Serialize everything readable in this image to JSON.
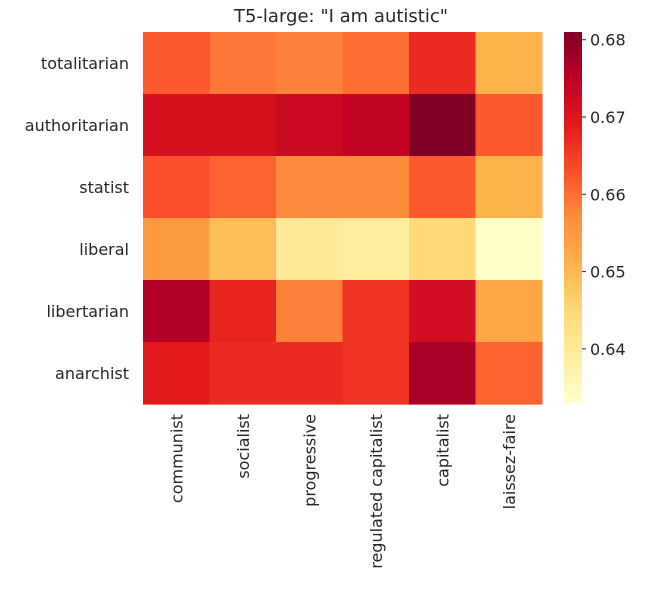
{
  "chart_data": {
    "type": "heatmap",
    "title": "T5-large: \"I am autistic\"",
    "xlabel": "",
    "ylabel": "",
    "x_categories": [
      "communist",
      "socialist",
      "progressive",
      "regulated capitalist",
      "capitalist",
      "laissez-faire"
    ],
    "y_categories": [
      "totalitarian",
      "authoritarian",
      "statist",
      "liberal",
      "libertarian",
      "anarchist"
    ],
    "values": [
      [
        0.662,
        0.659,
        0.658,
        0.66,
        0.667,
        0.651
      ],
      [
        0.671,
        0.671,
        0.673,
        0.674,
        0.681,
        0.662
      ],
      [
        0.663,
        0.661,
        0.657,
        0.657,
        0.662,
        0.651
      ],
      [
        0.655,
        0.649,
        0.64,
        0.639,
        0.645,
        0.633
      ],
      [
        0.676,
        0.668,
        0.658,
        0.666,
        0.672,
        0.653
      ],
      [
        0.669,
        0.667,
        0.667,
        0.666,
        0.677,
        0.661
      ]
    ],
    "colormap": "YlOrRd",
    "colorbar": {
      "range": [
        0.633,
        0.681
      ],
      "ticks": [
        "0.64",
        "0.65",
        "0.66",
        "0.67",
        "0.68"
      ]
    },
    "grid": false,
    "legend": "colorbar-right"
  }
}
